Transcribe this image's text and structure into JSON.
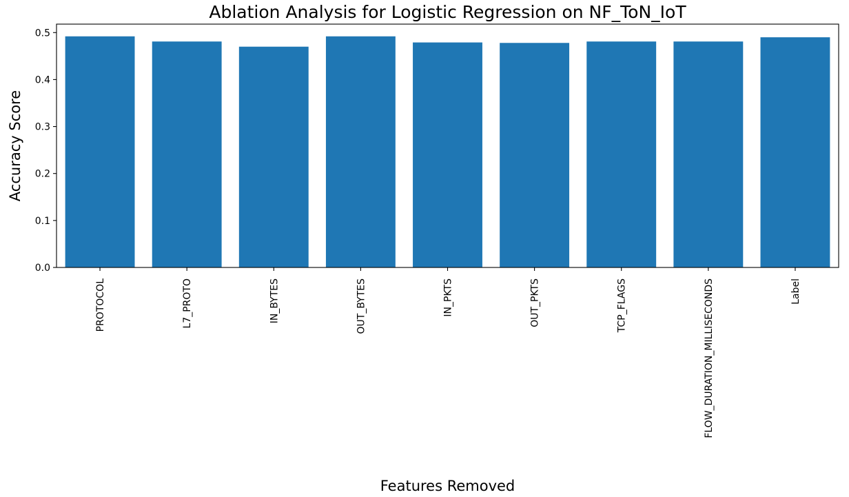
{
  "chart_data": {
    "type": "bar",
    "title": "Ablation Analysis for Logistic Regression on NF_ToN_IoT",
    "xlabel": "Features Removed",
    "ylabel": "Accuracy Score",
    "categories": [
      "PROTOCOL",
      "L7_PROTO",
      "IN_BYTES",
      "OUT_BYTES",
      "IN_PKTS",
      "OUT_PKTS",
      "TCP_FLAGS",
      "FLOW_DURATION_MILLISECONDS",
      "Label"
    ],
    "values": [
      0.492,
      0.481,
      0.47,
      0.492,
      0.479,
      0.478,
      0.481,
      0.481,
      0.49
    ],
    "ylim": [
      0,
      0.518
    ],
    "yticks": [
      0.0,
      0.1,
      0.2,
      0.3,
      0.4,
      0.5
    ],
    "ytick_labels": [
      "0.0",
      "0.1",
      "0.2",
      "0.3",
      "0.4",
      "0.5"
    ],
    "bar_color": "#1f77b4",
    "grid": false,
    "legend": "none"
  }
}
